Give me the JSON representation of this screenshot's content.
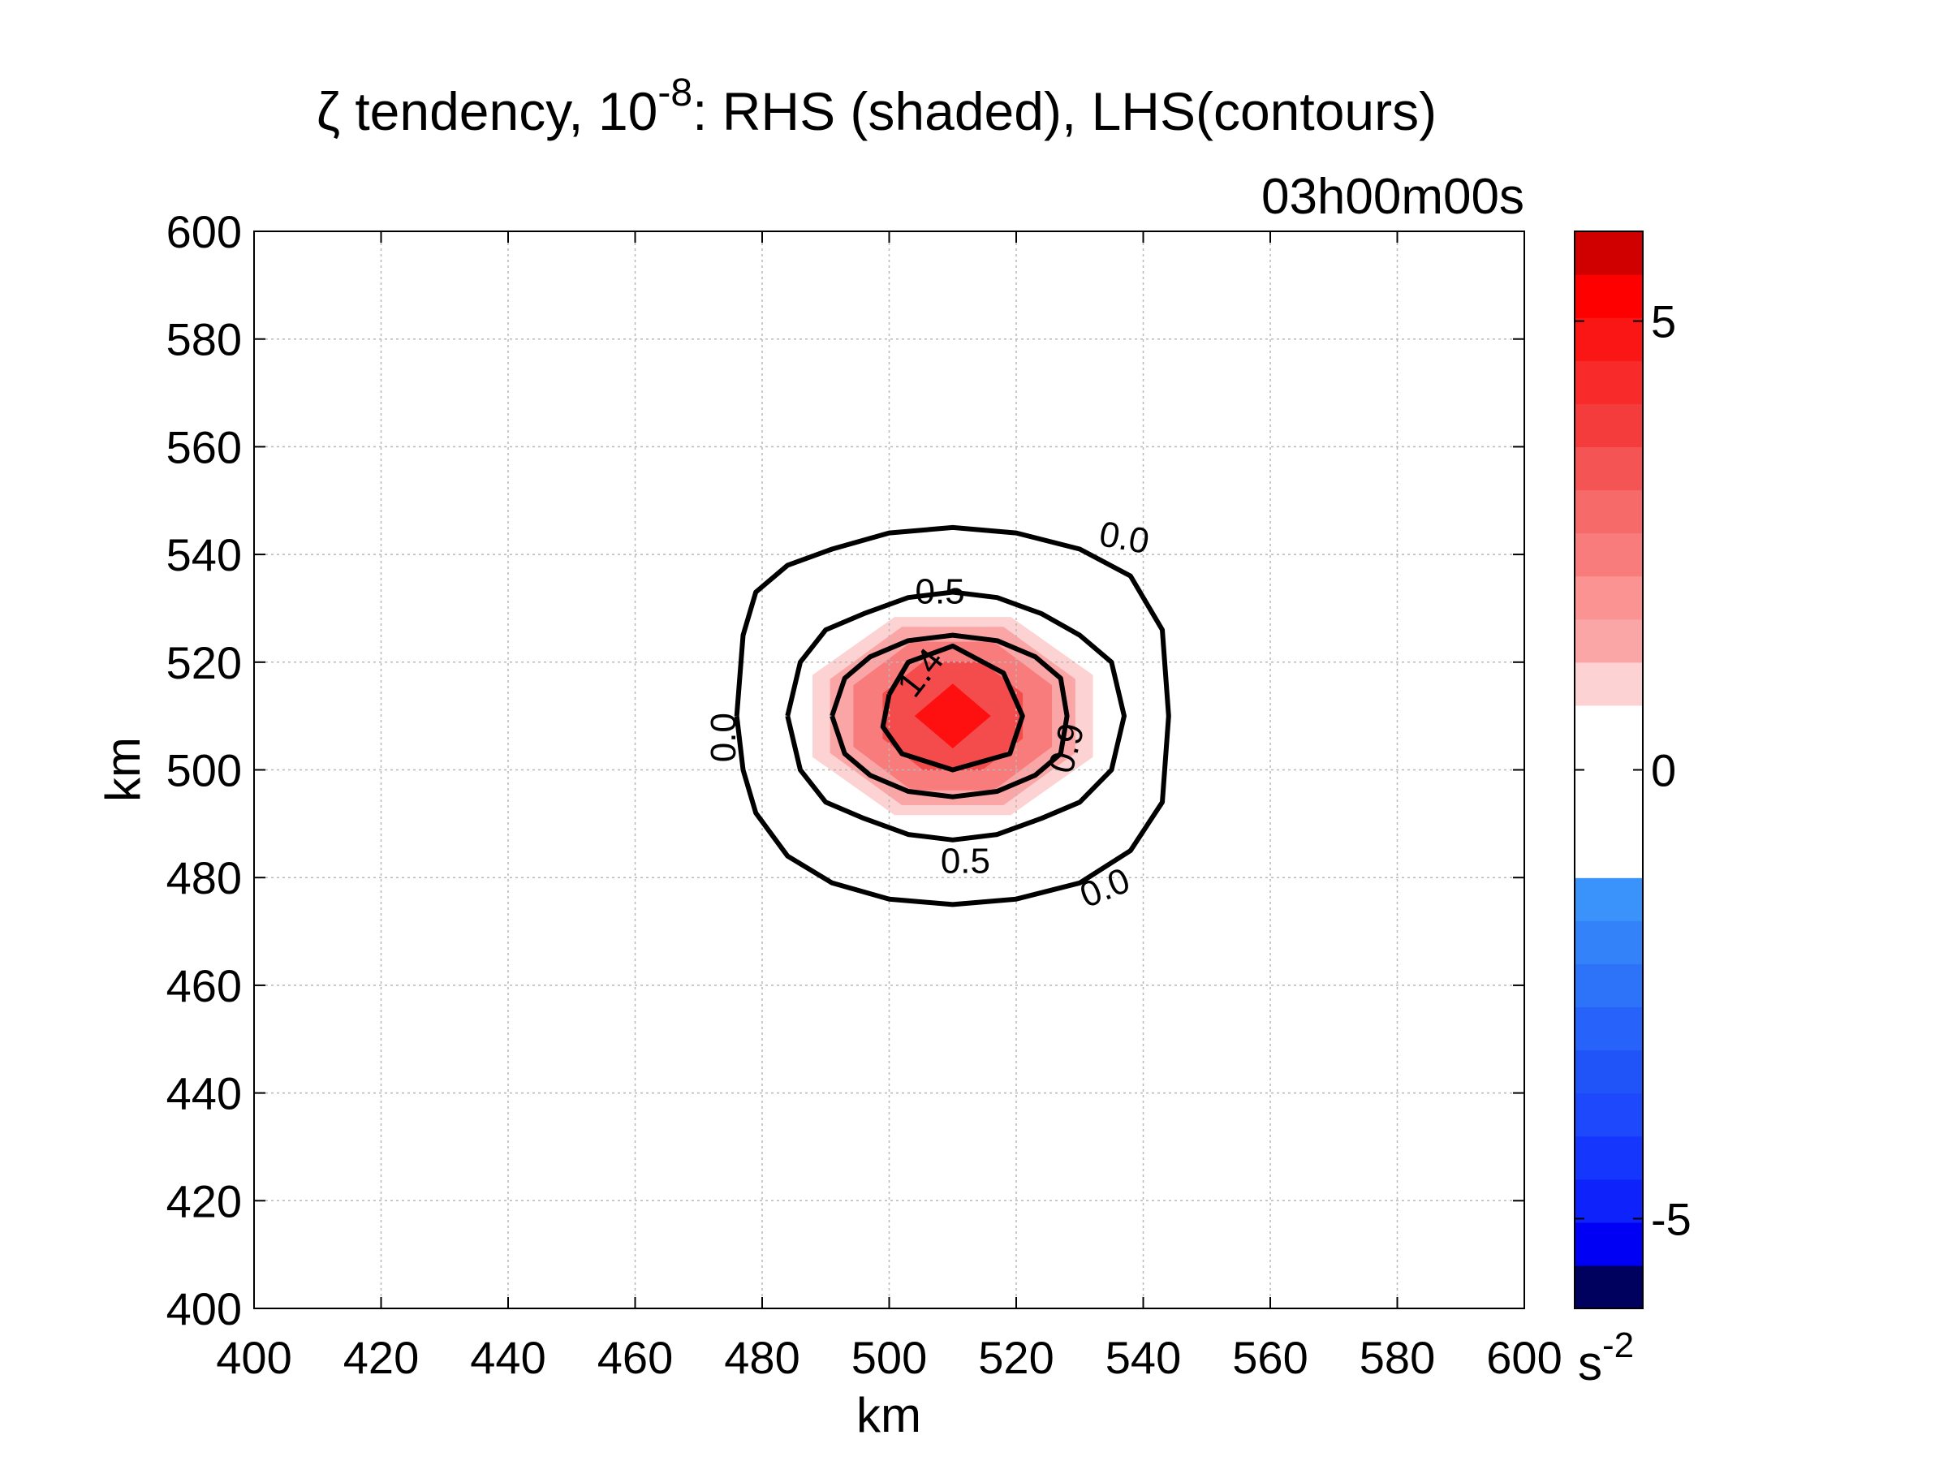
{
  "chart_data": {
    "type": "heatmap",
    "title": {
      "pre": "ζ tendency, 10",
      "sup": "-8",
      "post": ": RHS (shaded), LHS(contours)"
    },
    "subtitle": "03h00m00s",
    "xlabel": "km",
    "ylabel": "km",
    "xlim": [
      400,
      600
    ],
    "ylim": [
      400,
      600
    ],
    "xticks": [
      "400",
      "420",
      "440",
      "460",
      "480",
      "500",
      "520",
      "540",
      "560",
      "580",
      "600"
    ],
    "yticks": [
      "400",
      "420",
      "440",
      "460",
      "480",
      "500",
      "520",
      "540",
      "560",
      "580",
      "600"
    ],
    "grid": true,
    "shaded_field": {
      "center": [
        510,
        510
      ],
      "levels": [
        {
          "value": 1.0,
          "radius_x": 24,
          "radius_y": 20,
          "color": "#fcd2d2"
        },
        {
          "value": 2.0,
          "radius_x": 21,
          "radius_y": 18,
          "color": "#fba6a6"
        },
        {
          "value": 3.0,
          "radius_x": 17,
          "radius_y": 15,
          "color": "#f97c7c"
        },
        {
          "value": 4.0,
          "radius_x": 12,
          "radius_y": 11,
          "color": "#f44c4c"
        },
        {
          "value": 5.0,
          "radius_x": 6,
          "radius_y": 6,
          "color": "#ff1010"
        }
      ]
    },
    "contours": [
      {
        "label": "0.0",
        "x": [
          476,
          477,
          479,
          484,
          491,
          500,
          510,
          520,
          530,
          538,
          543,
          544,
          543,
          538,
          530,
          520,
          510,
          500,
          491,
          484,
          479,
          477,
          476
        ],
        "y": [
          510,
          525,
          533,
          538,
          541,
          544,
          545,
          544,
          541,
          536,
          526,
          510,
          494,
          485,
          479,
          476,
          475,
          476,
          479,
          484,
          492,
          500,
          510
        ]
      },
      {
        "label": "0.5",
        "x": [
          484,
          486,
          490,
          496,
          503,
          510,
          517,
          524,
          530,
          535,
          537,
          535,
          530,
          524,
          517,
          510,
          503,
          496,
          490,
          486,
          484
        ],
        "y": [
          510,
          520,
          526,
          529,
          532,
          533,
          532,
          529,
          525,
          520,
          510,
          500,
          494,
          491,
          488,
          487,
          488,
          491,
          494,
          500,
          510
        ]
      },
      {
        "label": "0.9",
        "x": [
          491,
          493,
          497,
          503,
          510,
          517,
          523,
          527,
          528,
          527,
          523,
          517,
          510,
          503,
          497,
          493,
          491
        ],
        "y": [
          510,
          517,
          521,
          524,
          525,
          524,
          521,
          517,
          510,
          503,
          499,
          496,
          495,
          496,
          499,
          503,
          510
        ]
      },
      {
        "label": "1.4",
        "x": [
          500,
          503,
          510,
          518,
          521,
          519,
          510,
          502,
          499,
          500
        ],
        "y": [
          514,
          520,
          523,
          518,
          510,
          503,
          500,
          503,
          508,
          514
        ]
      }
    ],
    "contour_labels": [
      {
        "text": "0.0",
        "x": 537,
        "y": 543,
        "angle": 10
      },
      {
        "text": "0.5",
        "x": 508,
        "y": 533,
        "angle": 0
      },
      {
        "text": "1.4",
        "x": 505,
        "y": 518,
        "angle": -52
      },
      {
        "text": "0.9",
        "x": 528,
        "y": 504,
        "angle": -75
      },
      {
        "text": "0.0",
        "x": 474,
        "y": 506,
        "angle": -90
      },
      {
        "text": "0.5",
        "x": 512,
        "y": 483,
        "angle": 0
      },
      {
        "text": "0.0",
        "x": 534,
        "y": 478,
        "angle": -22
      }
    ],
    "colorbar": {
      "range": [
        -6,
        6
      ],
      "ticks": [
        "5",
        "0",
        "-5"
      ],
      "tick_values": [
        5,
        0,
        -5
      ],
      "unit_base": "s",
      "unit_sup": "-2",
      "colors": [
        "#00005e",
        "#0000f4",
        "#0e23fc",
        "#1536fc",
        "#1d48fc",
        "#2154f8",
        "#2763fa",
        "#2d73fa",
        "#3382fa",
        "#3993fa",
        "#ffffff",
        "#ffffff",
        "#ffffff",
        "#ffffff",
        "#fcd2d2",
        "#fba6a6",
        "#fb9393",
        "#f97c7c",
        "#f76a6a",
        "#f45454",
        "#f43c3c",
        "#f82a2a",
        "#fb1616",
        "#ff0000",
        "#d00000"
      ]
    }
  }
}
